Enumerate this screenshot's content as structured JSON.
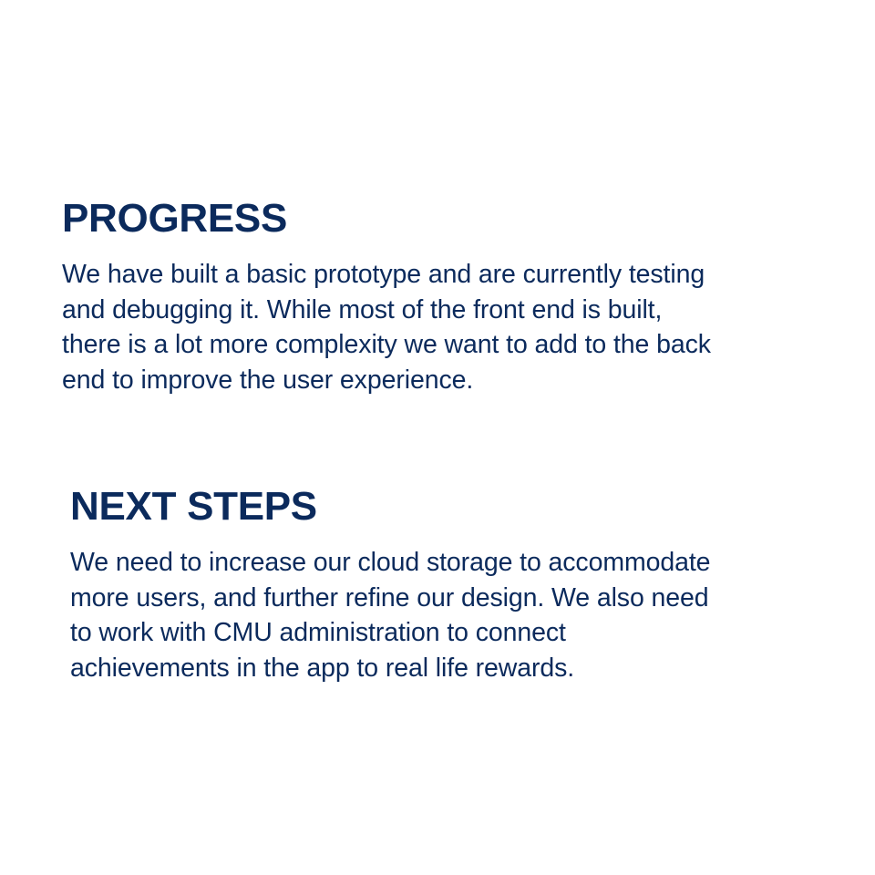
{
  "colors": {
    "background": "#ffffff",
    "text": "#0b2a5c"
  },
  "progress": {
    "heading": "PROGRESS",
    "lines": [
      "We have built a basic prototype and are currently testing",
      "and debugging it. While most of the front end is built,",
      "there is a lot more complexity we want to add to the back",
      "end to improve the user experience."
    ]
  },
  "next_steps": {
    "heading": "NEXT STEPS",
    "lines": [
      "We need to increase our cloud storage to accommodate",
      "more users, and further refine our design. We also need",
      "to work with CMU administration to connect",
      "achievements in the app to real life rewards."
    ]
  }
}
